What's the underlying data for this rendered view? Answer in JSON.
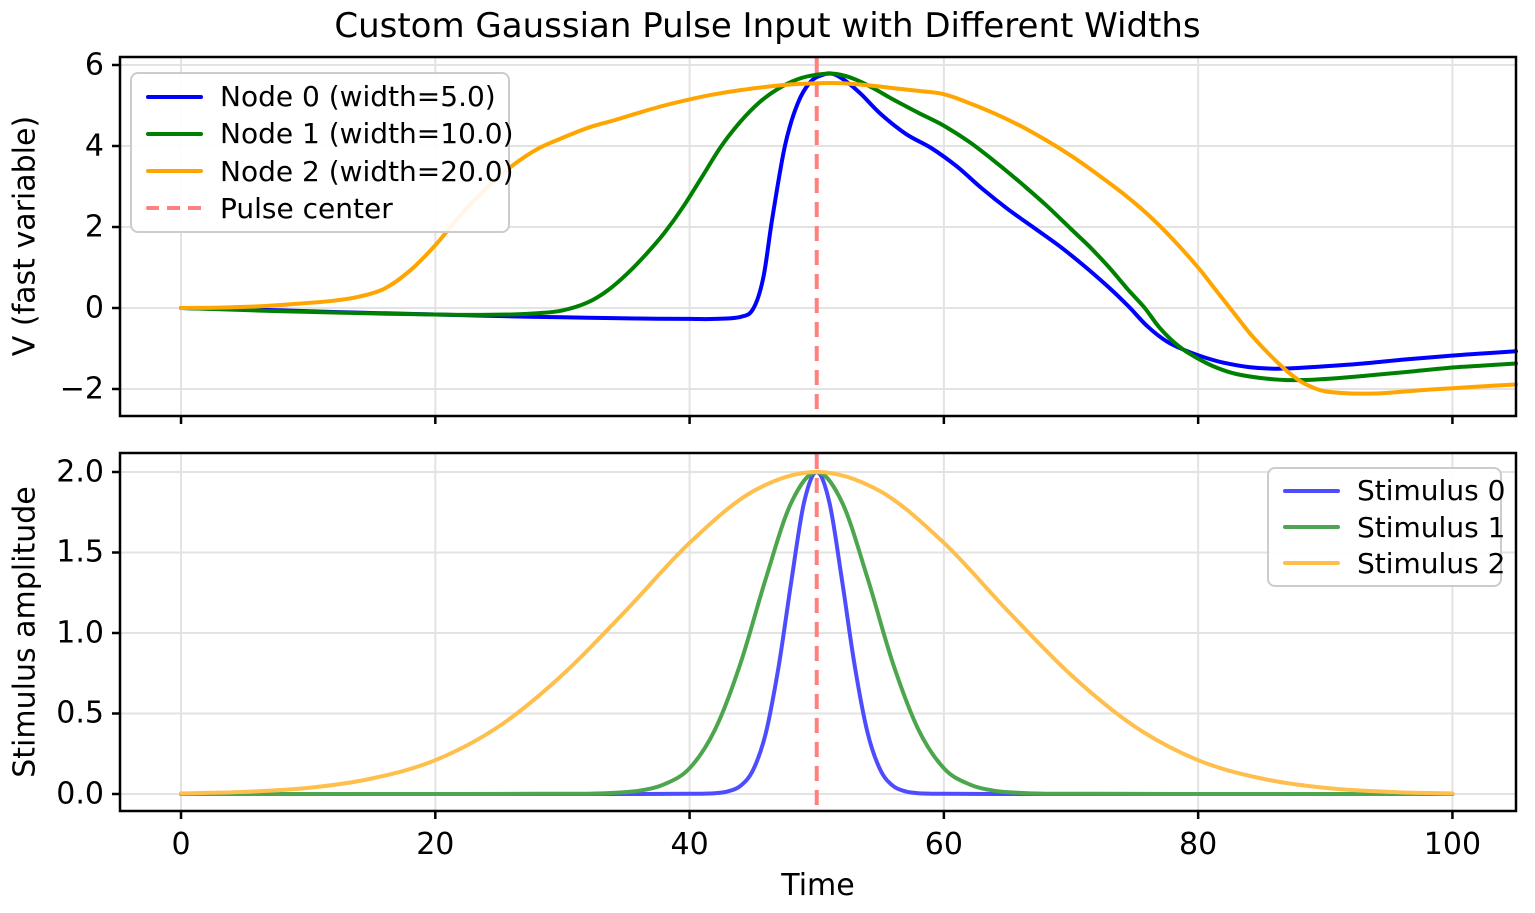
{
  "title": "Custom Gaussian Pulse Input with Different Widths",
  "colors": {
    "node0": "#0000ff",
    "node1": "#008000",
    "node2": "#ffa500",
    "stim0": "#4d4dff",
    "stim1": "#4da64d",
    "stim2": "#ffbf4d",
    "pulse_center": "#ff8080",
    "grid": "#e3e3e3",
    "spine": "#000000"
  },
  "xaxis": {
    "label": "Time",
    "tick_labels": [
      "0",
      "20",
      "40",
      "60",
      "80",
      "100"
    ],
    "tick_values": [
      0,
      20,
      40,
      60,
      80,
      100
    ]
  },
  "top_panel": {
    "ylabel": "V (fast variable)",
    "ytick_labels": [
      "6",
      "4",
      "2",
      "0",
      "−2"
    ],
    "ytick_values": [
      6,
      4,
      2,
      0,
      -2
    ],
    "legend": [
      {
        "label": "Node 0 (width=5.0)",
        "color": "#0000ff",
        "dashed": false
      },
      {
        "label": "Node 1 (width=10.0)",
        "color": "#008000",
        "dashed": false
      },
      {
        "label": "Node 2 (width=20.0)",
        "color": "#ffa500",
        "dashed": false
      },
      {
        "label": "Pulse center",
        "color": "#ff8080",
        "dashed": true
      }
    ]
  },
  "bottom_panel": {
    "ylabel": "Stimulus amplitude",
    "ytick_labels": [
      "2.0",
      "1.5",
      "1.0",
      "0.5",
      "0.0"
    ],
    "ytick_values": [
      2.0,
      1.5,
      1.0,
      0.5,
      0.0
    ],
    "legend": [
      {
        "label": "Stimulus 0",
        "color": "#4d4dff",
        "dashed": false
      },
      {
        "label": "Stimulus 1",
        "color": "#4da64d",
        "dashed": false
      },
      {
        "label": "Stimulus 2",
        "color": "#ffbf4d",
        "dashed": false
      }
    ]
  },
  "chart_data": [
    {
      "type": "line",
      "panel": "top",
      "title": "Custom Gaussian Pulse Input with Different Widths",
      "xlabel": "",
      "ylabel": "V (fast variable)",
      "xlim": [
        -4.8,
        105
      ],
      "ylim": [
        -2.67,
        6.2
      ],
      "grid": true,
      "legend_position": "upper left",
      "pulse_center_x": 50,
      "series": [
        {
          "name": "Node 0 (width=5.0)",
          "color": "#0000ff",
          "points": [
            [
              0,
              0
            ],
            [
              4,
              -0.03
            ],
            [
              8,
              -0.06
            ],
            [
              12,
              -0.1
            ],
            [
              16,
              -0.13
            ],
            [
              20,
              -0.16
            ],
            [
              24,
              -0.19
            ],
            [
              28,
              -0.22
            ],
            [
              32,
              -0.24
            ],
            [
              36,
              -0.26
            ],
            [
              40,
              -0.27
            ],
            [
              42,
              -0.27
            ],
            [
              44,
              -0.22
            ],
            [
              45,
              -0.02
            ],
            [
              45.8,
              0.75
            ],
            [
              46.5,
              2.2
            ],
            [
              47.5,
              4.0
            ],
            [
              48.5,
              5.05
            ],
            [
              49.5,
              5.58
            ],
            [
              50.5,
              5.76
            ],
            [
              51.3,
              5.78
            ],
            [
              52.3,
              5.6
            ],
            [
              53.5,
              5.28
            ],
            [
              55,
              4.8
            ],
            [
              57,
              4.3
            ],
            [
              59,
              3.95
            ],
            [
              61,
              3.5
            ],
            [
              63,
              2.95
            ],
            [
              65,
              2.45
            ],
            [
              67,
              2.0
            ],
            [
              69,
              1.55
            ],
            [
              71,
              1.05
            ],
            [
              73,
              0.5
            ],
            [
              74.5,
              0.05
            ],
            [
              76,
              -0.45
            ],
            [
              77.5,
              -0.82
            ],
            [
              79,
              -1.05
            ],
            [
              80.5,
              -1.22
            ],
            [
              82,
              -1.35
            ],
            [
              84,
              -1.46
            ],
            [
              86,
              -1.5
            ],
            [
              88,
              -1.48
            ],
            [
              90,
              -1.44
            ],
            [
              93,
              -1.37
            ],
            [
              96,
              -1.28
            ],
            [
              99,
              -1.2
            ],
            [
              102,
              -1.13
            ],
            [
              105,
              -1.07
            ]
          ]
        },
        {
          "name": "Node 1 (width=10.0)",
          "color": "#008000",
          "points": [
            [
              0,
              0
            ],
            [
              4,
              -0.04
            ],
            [
              8,
              -0.08
            ],
            [
              12,
              -0.11
            ],
            [
              16,
              -0.14
            ],
            [
              20,
              -0.16
            ],
            [
              23,
              -0.17
            ],
            [
              26,
              -0.16
            ],
            [
              28,
              -0.13
            ],
            [
              30,
              -0.06
            ],
            [
              32,
              0.14
            ],
            [
              33.5,
              0.42
            ],
            [
              35,
              0.82
            ],
            [
              36.5,
              1.3
            ],
            [
              38,
              1.85
            ],
            [
              39.5,
              2.5
            ],
            [
              41,
              3.25
            ],
            [
              42.5,
              4.0
            ],
            [
              44,
              4.6
            ],
            [
              45.5,
              5.08
            ],
            [
              47,
              5.42
            ],
            [
              48.5,
              5.65
            ],
            [
              50,
              5.76
            ],
            [
              51.5,
              5.78
            ],
            [
              53,
              5.65
            ],
            [
              54.5,
              5.42
            ],
            [
              56,
              5.15
            ],
            [
              58,
              4.82
            ],
            [
              60,
              4.5
            ],
            [
              62,
              4.1
            ],
            [
              64,
              3.62
            ],
            [
              66,
              3.1
            ],
            [
              68,
              2.55
            ],
            [
              70,
              1.95
            ],
            [
              71.5,
              1.5
            ],
            [
              73,
              1.0
            ],
            [
              74.5,
              0.45
            ],
            [
              75.8,
              0.0
            ],
            [
              77,
              -0.5
            ],
            [
              78.5,
              -0.95
            ],
            [
              80,
              -1.25
            ],
            [
              81.5,
              -1.48
            ],
            [
              83,
              -1.63
            ],
            [
              85,
              -1.73
            ],
            [
              87,
              -1.78
            ],
            [
              89,
              -1.77
            ],
            [
              91,
              -1.73
            ],
            [
              94,
              -1.65
            ],
            [
              97,
              -1.56
            ],
            [
              100,
              -1.47
            ],
            [
              102.5,
              -1.42
            ],
            [
              105,
              -1.37
            ]
          ]
        },
        {
          "name": "Node 2 (width=20.0)",
          "color": "#ffa500",
          "points": [
            [
              0,
              0
            ],
            [
              3,
              0.01
            ],
            [
              6,
              0.04
            ],
            [
              9,
              0.1
            ],
            [
              12,
              0.18
            ],
            [
              14,
              0.28
            ],
            [
              16,
              0.48
            ],
            [
              18,
              0.92
            ],
            [
              20,
              1.55
            ],
            [
              22,
              2.3
            ],
            [
              24,
              2.95
            ],
            [
              26,
              3.5
            ],
            [
              28,
              3.92
            ],
            [
              30,
              4.2
            ],
            [
              32,
              4.45
            ],
            [
              34,
              4.63
            ],
            [
              36,
              4.82
            ],
            [
              38,
              5.0
            ],
            [
              40,
              5.15
            ],
            [
              42,
              5.28
            ],
            [
              44,
              5.38
            ],
            [
              46,
              5.46
            ],
            [
              48,
              5.52
            ],
            [
              50,
              5.55
            ],
            [
              52,
              5.55
            ],
            [
              54,
              5.5
            ],
            [
              56,
              5.43
            ],
            [
              58,
              5.36
            ],
            [
              60,
              5.28
            ],
            [
              62,
              5.06
            ],
            [
              64,
              4.8
            ],
            [
              66,
              4.5
            ],
            [
              68,
              4.15
            ],
            [
              70,
              3.76
            ],
            [
              72,
              3.32
            ],
            [
              74,
              2.85
            ],
            [
              76,
              2.32
            ],
            [
              78,
              1.7
            ],
            [
              80,
              1.0
            ],
            [
              81,
              0.6
            ],
            [
              82,
              0.2
            ],
            [
              83,
              -0.2
            ],
            [
              84,
              -0.6
            ],
            [
              85,
              -0.95
            ],
            [
              86,
              -1.27
            ],
            [
              87,
              -1.56
            ],
            [
              88,
              -1.8
            ],
            [
              89,
              -1.96
            ],
            [
              90,
              -2.06
            ],
            [
              92,
              -2.11
            ],
            [
              94,
              -2.11
            ],
            [
              96,
              -2.07
            ],
            [
              98,
              -2.02
            ],
            [
              100,
              -1.98
            ],
            [
              102.5,
              -1.93
            ],
            [
              105,
              -1.89
            ]
          ]
        }
      ]
    },
    {
      "type": "line",
      "panel": "bottom",
      "title": "",
      "xlabel": "Time",
      "ylabel": "Stimulus amplitude",
      "xlim": [
        -4.8,
        105
      ],
      "ylim": [
        -0.105,
        2.105
      ],
      "grid": true,
      "legend_position": "upper right",
      "pulse_center_x": 50,
      "series": [
        {
          "name": "Stimulus 0",
          "color": "#4d4dff",
          "points": [
            [
              0,
              0
            ],
            [
              20,
              0
            ],
            [
              30,
              0
            ],
            [
              36,
              0
            ],
            [
              40,
              0.001
            ],
            [
              42,
              0.005
            ],
            [
              43,
              0.016
            ],
            [
              44,
              0.05
            ],
            [
              45,
              0.15
            ],
            [
              46,
              0.38
            ],
            [
              47,
              0.79
            ],
            [
              48,
              1.32
            ],
            [
              49,
              1.81
            ],
            [
              50,
              2.0
            ],
            [
              51,
              1.81
            ],
            [
              52,
              1.32
            ],
            [
              53,
              0.79
            ],
            [
              54,
              0.38
            ],
            [
              55,
              0.15
            ],
            [
              56,
              0.05
            ],
            [
              57,
              0.016
            ],
            [
              58,
              0.005
            ],
            [
              60,
              0.001
            ],
            [
              64,
              0
            ],
            [
              70,
              0
            ],
            [
              85,
              0
            ],
            [
              100,
              0
            ]
          ]
        },
        {
          "name": "Stimulus 1",
          "color": "#4da64d",
          "points": [
            [
              0,
              0
            ],
            [
              14,
              0
            ],
            [
              22,
              0
            ],
            [
              28,
              0.001
            ],
            [
              32,
              0.002
            ],
            [
              34,
              0.007
            ],
            [
              36,
              0.02
            ],
            [
              38,
              0.06
            ],
            [
              40,
              0.16
            ],
            [
              42,
              0.4
            ],
            [
              44,
              0.81
            ],
            [
              46,
              1.34
            ],
            [
              48,
              1.81
            ],
            [
              50,
              2.0
            ],
            [
              52,
              1.81
            ],
            [
              54,
              1.34
            ],
            [
              56,
              0.81
            ],
            [
              58,
              0.4
            ],
            [
              60,
              0.16
            ],
            [
              62,
              0.06
            ],
            [
              64,
              0.02
            ],
            [
              66,
              0.007
            ],
            [
              68,
              0.002
            ],
            [
              72,
              0.001
            ],
            [
              78,
              0
            ],
            [
              88,
              0
            ],
            [
              100,
              0
            ]
          ]
        },
        {
          "name": "Stimulus 2",
          "color": "#ffbf4d",
          "points": [
            [
              0,
              0.004
            ],
            [
              5,
              0.013
            ],
            [
              10,
              0.038
            ],
            [
              15,
              0.096
            ],
            [
              20,
              0.21
            ],
            [
              25,
              0.42
            ],
            [
              30,
              0.74
            ],
            [
              35,
              1.14
            ],
            [
              40,
              1.56
            ],
            [
              45,
              1.88
            ],
            [
              50,
              2.0
            ],
            [
              55,
              1.88
            ],
            [
              60,
              1.56
            ],
            [
              65,
              1.14
            ],
            [
              70,
              0.74
            ],
            [
              75,
              0.42
            ],
            [
              80,
              0.21
            ],
            [
              85,
              0.096
            ],
            [
              90,
              0.038
            ],
            [
              95,
              0.013
            ],
            [
              100,
              0.004
            ]
          ]
        }
      ]
    }
  ]
}
